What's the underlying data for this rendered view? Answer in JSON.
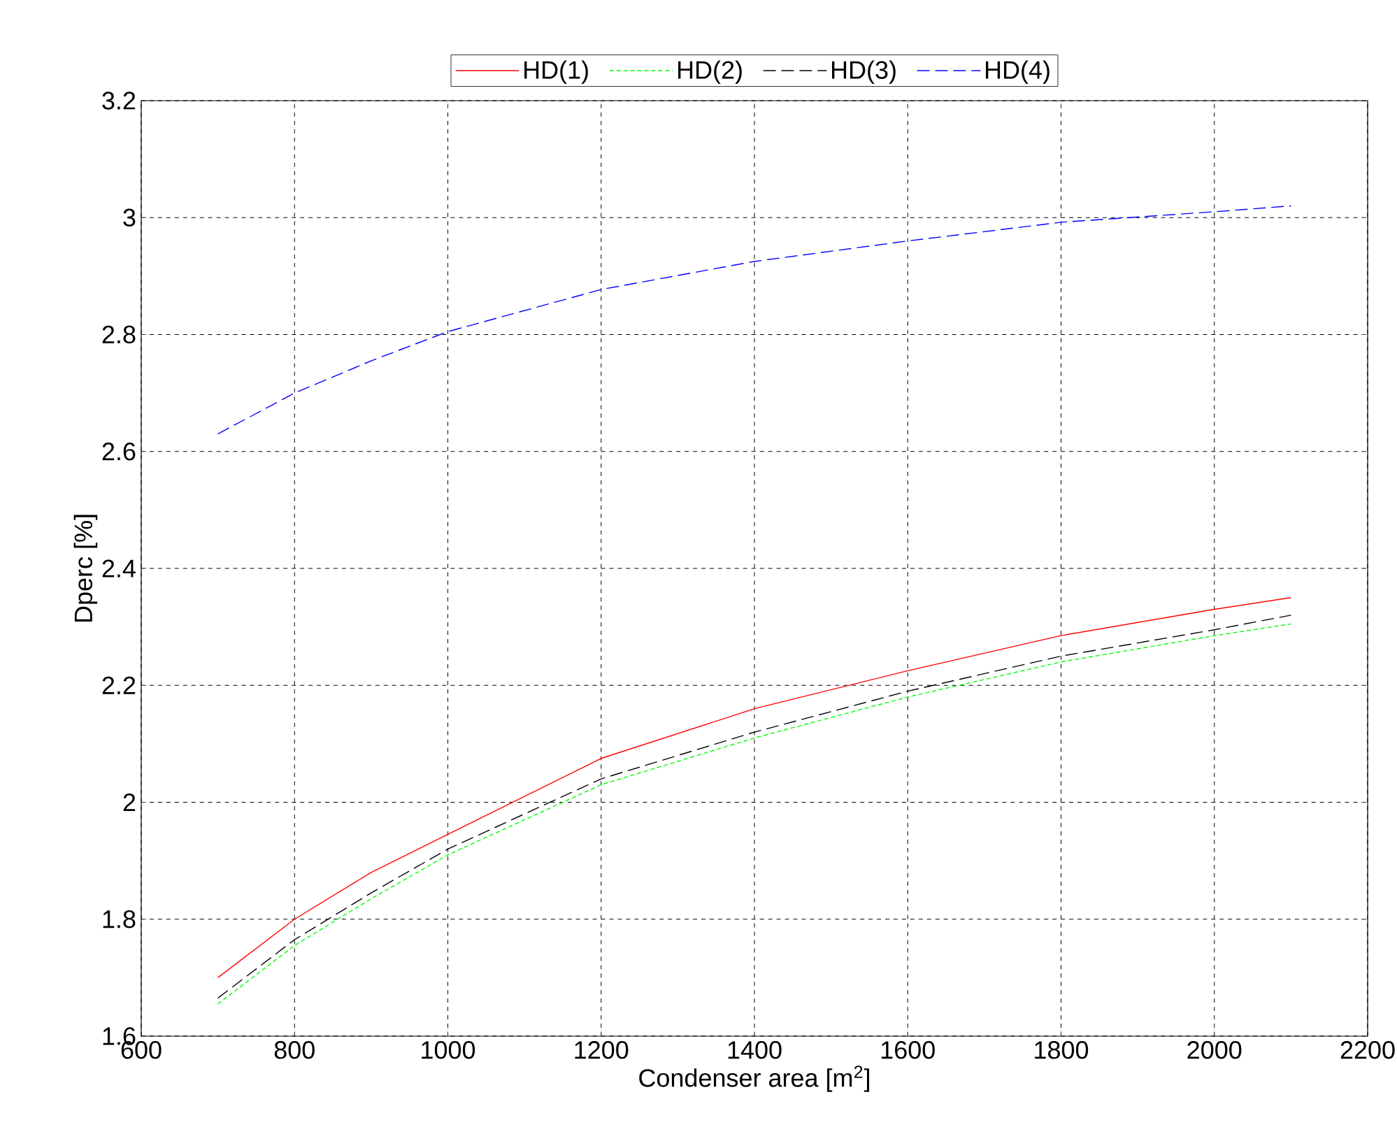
{
  "chart_data": {
    "type": "line",
    "xlabel": "Condenser area [m$^{2}$]",
    "ylabel": "Dperc [%]",
    "x": [
      700,
      800,
      900,
      1000,
      1200,
      1400,
      1600,
      1800,
      2000,
      2100
    ],
    "series": [
      {
        "name": "HD(1)",
        "color": "#ff0000",
        "line_style": "solid",
        "values": [
          1.7,
          1.8,
          1.88,
          1.945,
          2.075,
          2.16,
          2.225,
          2.285,
          2.33,
          2.35
        ]
      },
      {
        "name": "HD(2)",
        "color": "#00ff00",
        "line_style": "dotted",
        "values": [
          1.655,
          1.755,
          1.835,
          1.91,
          2.03,
          2.11,
          2.18,
          2.24,
          2.285,
          2.305
        ]
      },
      {
        "name": "HD(3)",
        "color": "#000000",
        "line_style": "dashed",
        "values": [
          1.665,
          1.765,
          1.845,
          1.92,
          2.04,
          2.12,
          2.19,
          2.25,
          2.295,
          2.32
        ]
      },
      {
        "name": "HD(4)",
        "color": "#0000ff",
        "line_style": "dashed",
        "values": [
          2.63,
          2.7,
          2.755,
          2.805,
          2.877,
          2.925,
          2.96,
          2.992,
          3.01,
          3.02
        ]
      }
    ],
    "xlim": [
      600,
      2200
    ],
    "ylim": [
      1.6,
      3.2
    ],
    "xticks": [
      600,
      800,
      1000,
      1200,
      1400,
      1600,
      1800,
      2000,
      2200
    ],
    "yticks": [
      1.6,
      1.8,
      2,
      2.2,
      2.4,
      2.6,
      2.8,
      3,
      3.2
    ],
    "grid": true,
    "legend": "top",
    "marker": "none"
  }
}
